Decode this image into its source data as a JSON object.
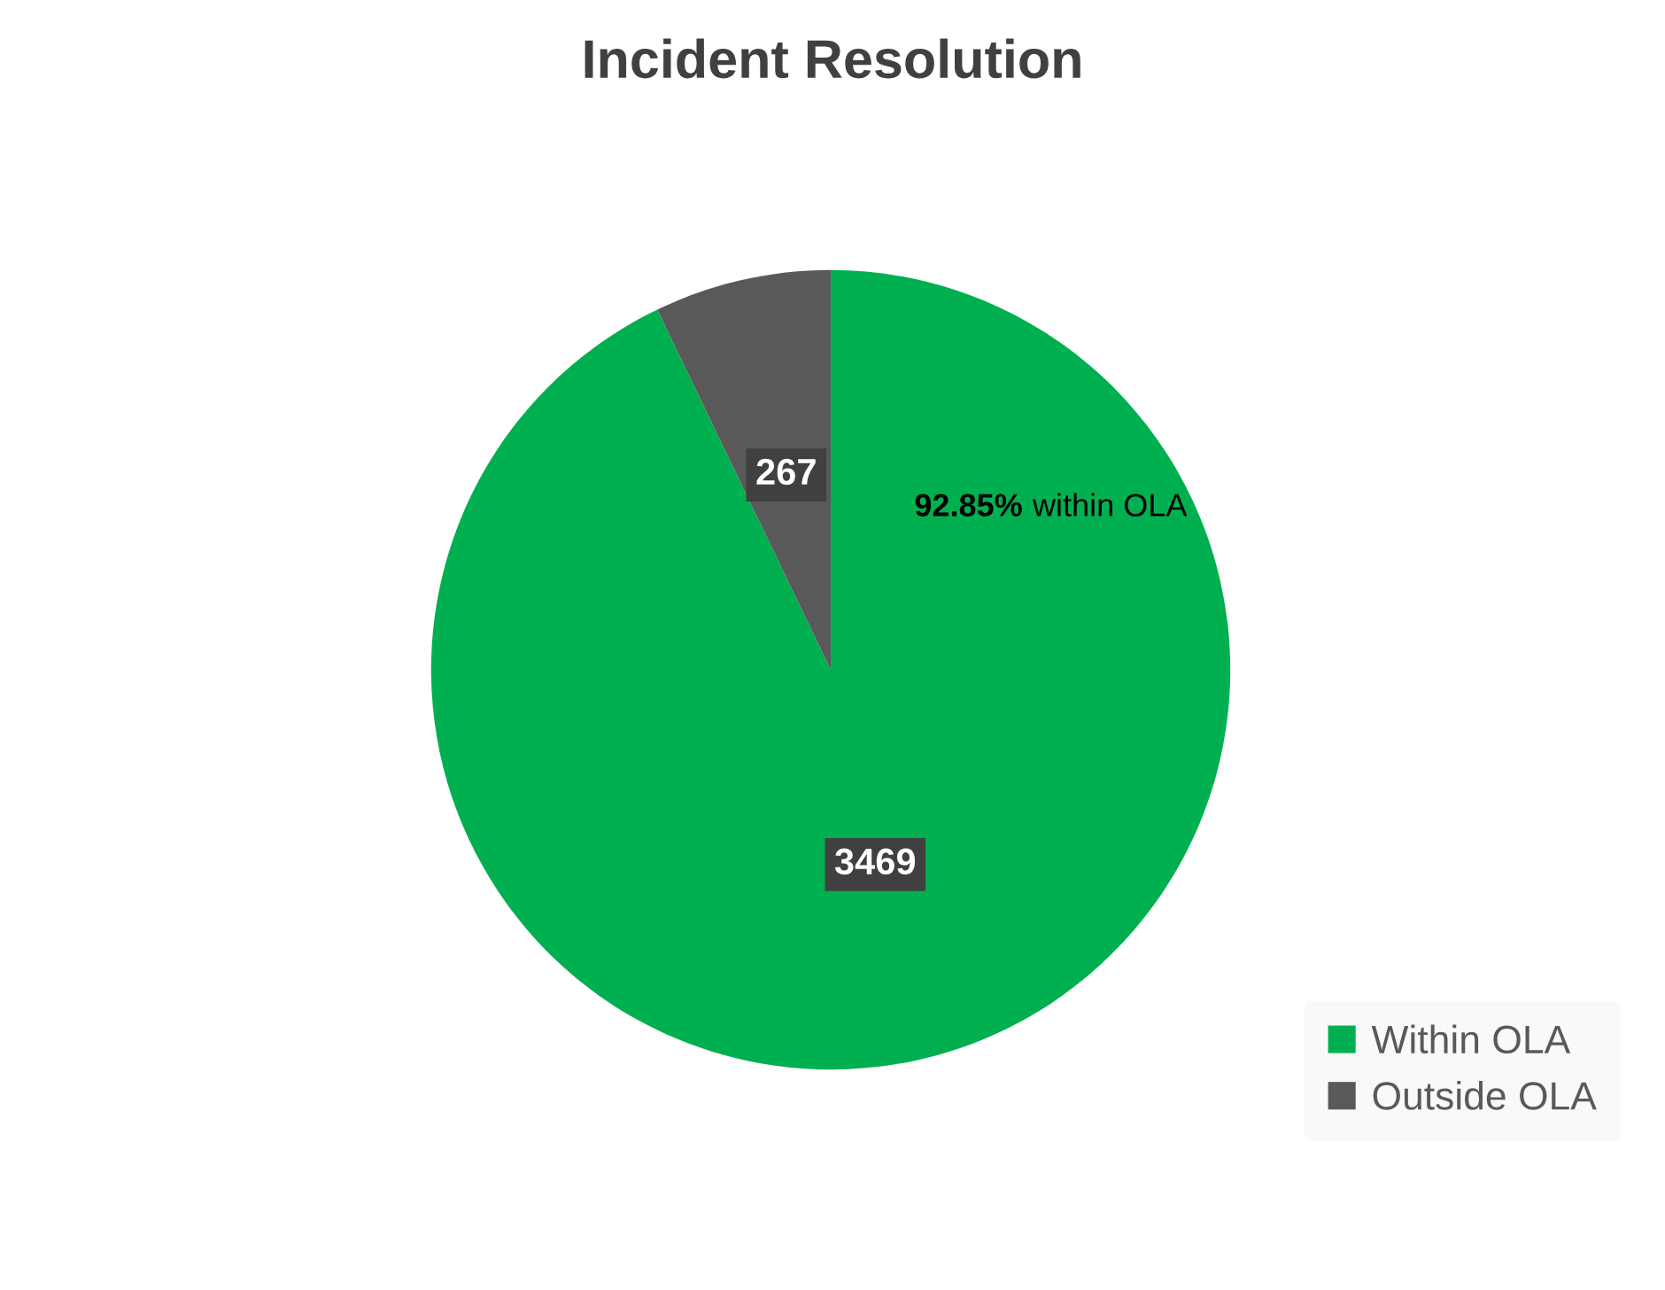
{
  "chart_data": {
    "type": "pie",
    "title": "Incident Resolution",
    "categories": [
      "Within OLA",
      "Outside OLA"
    ],
    "values": [
      3469,
      267
    ],
    "colors": [
      "#00b050",
      "#595959"
    ],
    "data_labels": true,
    "legend": "bottom right",
    "annotations": [
      "92.85% within OLA"
    ]
  }
}
